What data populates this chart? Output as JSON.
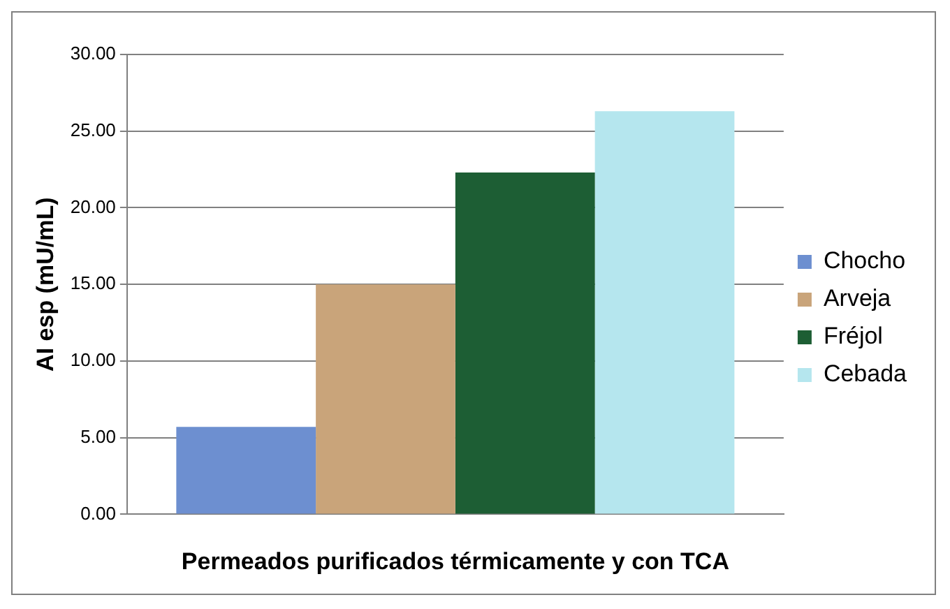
{
  "chart_data": {
    "type": "bar",
    "categories": [
      null
    ],
    "xlabel": "Permeados purificados térmicamente y con TCA",
    "ylabel": "AI esp (mU/mL)",
    "series": [
      {
        "name": "Chocho",
        "color": "#6d8fd0",
        "values": [
          5.7
        ]
      },
      {
        "name": "Arveja",
        "color": "#c9a47a",
        "values": [
          15.0
        ]
      },
      {
        "name": "Fréjol",
        "color": "#1d5e34",
        "values": [
          22.3
        ]
      },
      {
        "name": "Cebada",
        "color": "#b5e6ee",
        "values": [
          26.3
        ]
      }
    ],
    "ylim": [
      0,
      30
    ],
    "yticks": [
      {
        "value": 0,
        "label": "0.00"
      },
      {
        "value": 5,
        "label": "5.00"
      },
      {
        "value": 10,
        "label": "10.00"
      },
      {
        "value": 15,
        "label": "15.00"
      },
      {
        "value": 20,
        "label": "20.00"
      },
      {
        "value": 25,
        "label": "25.00"
      },
      {
        "value": 30,
        "label": "30.00"
      }
    ],
    "grid": "y",
    "legend": "right"
  }
}
